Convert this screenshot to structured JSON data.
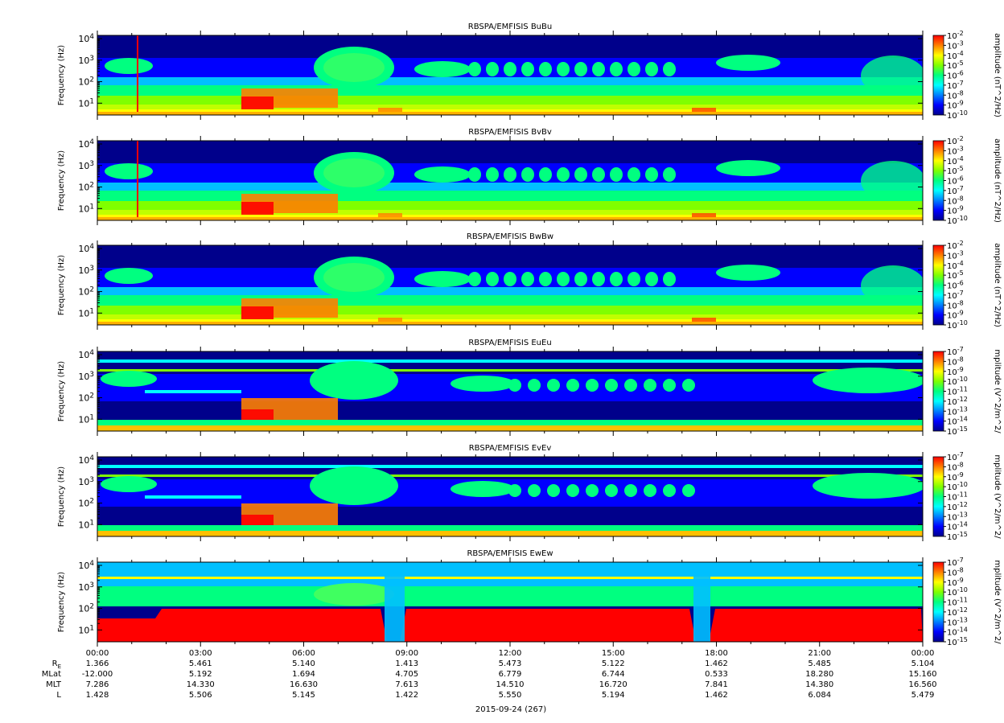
{
  "figure": {
    "date_label": "2015-09-24 (267)"
  },
  "colors": {
    "colormap": [
      "#00008b",
      "#0000ff",
      "#0080ff",
      "#00ffff",
      "#00ff80",
      "#80ff00",
      "#ffff00",
      "#ff8000",
      "#ff0000"
    ],
    "background": "#ffffff"
  },
  "chart_data": [
    {
      "type": "heatmap",
      "title": "RBSPA/EMFISIS  BuBu",
      "ylabel": "Frequency (Hz)",
      "y_scale": "log",
      "y_ticks": [
        "10^1",
        "10^2",
        "10^3",
        "10^4"
      ],
      "colorbar_label": "amplitude (nT^2/Hz)",
      "colorbar_ticks": [
        "10^-2",
        "10^-3",
        "10^-4",
        "10^-5",
        "10^-6",
        "10^-7",
        "10^-8",
        "10^-9",
        "10^-10"
      ],
      "colorbar_range": [
        -10,
        -2
      ]
    },
    {
      "type": "heatmap",
      "title": "RBSPA/EMFISIS  BvBv",
      "ylabel": "Frequency (Hz)",
      "y_scale": "log",
      "y_ticks": [
        "10^1",
        "10^2",
        "10^3",
        "10^4"
      ],
      "colorbar_label": "amplitude (nT^2/Hz)",
      "colorbar_ticks": [
        "10^-2",
        "10^-3",
        "10^-4",
        "10^-5",
        "10^-6",
        "10^-7",
        "10^-8",
        "10^-9",
        "10^-10"
      ],
      "colorbar_range": [
        -10,
        -2
      ]
    },
    {
      "type": "heatmap",
      "title": "RBSPA/EMFISIS  BwBw",
      "ylabel": "Frequency (Hz)",
      "y_scale": "log",
      "y_ticks": [
        "10^1",
        "10^2",
        "10^3",
        "10^4"
      ],
      "colorbar_label": "amplitude (nT^2/Hz)",
      "colorbar_ticks": [
        "10^-2",
        "10^-3",
        "10^-4",
        "10^-5",
        "10^-6",
        "10^-7",
        "10^-8",
        "10^-9",
        "10^-10"
      ],
      "colorbar_range": [
        -10,
        -2
      ]
    },
    {
      "type": "heatmap",
      "title": "RBSPA/EMFISIS  EuEu",
      "ylabel": "Frequency (Hz)",
      "y_scale": "log",
      "y_ticks": [
        "10^1",
        "10^2",
        "10^3",
        "10^4"
      ],
      "colorbar_label": "mplitude (V^2/m^2/",
      "colorbar_ticks": [
        "10^-7",
        "10^-8",
        "10^-9",
        "10^-10",
        "10^-11",
        "10^-12",
        "10^-13",
        "10^-14",
        "10^-15"
      ],
      "colorbar_range": [
        -15,
        -7
      ]
    },
    {
      "type": "heatmap",
      "title": "RBSPA/EMFISIS  EvEv",
      "ylabel": "Frequency (Hz)",
      "y_scale": "log",
      "y_ticks": [
        "10^1",
        "10^2",
        "10^3",
        "10^4"
      ],
      "colorbar_label": "mplitude (V^2/m^2/",
      "colorbar_ticks": [
        "10^-7",
        "10^-8",
        "10^-9",
        "10^-10",
        "10^-11",
        "10^-12",
        "10^-13",
        "10^-14",
        "10^-15"
      ],
      "colorbar_range": [
        -15,
        -7
      ]
    },
    {
      "type": "heatmap",
      "title": "RBSPA/EMFISIS  EwEw",
      "ylabel": "Frequency (Hz)",
      "y_scale": "log",
      "y_ticks": [
        "10^1",
        "10^2",
        "10^3",
        "10^4"
      ],
      "colorbar_label": "mplitude (V^2/m^2/",
      "colorbar_ticks": [
        "10^-7",
        "10^-8",
        "10^-9",
        "10^-10",
        "10^-11",
        "10^-12",
        "10^-13",
        "10^-14",
        "10^-15"
      ],
      "colorbar_range": [
        -15,
        -7
      ]
    }
  ],
  "x_axis": {
    "ticks": [
      "00:00",
      "03:00",
      "06:00",
      "09:00",
      "12:00",
      "15:00",
      "18:00",
      "21:00",
      "00:00"
    ],
    "ephemeris": [
      {
        "label": "R_E",
        "values": [
          "1.366",
          "5.461",
          "5.140",
          "1.413",
          "5.473",
          "5.122",
          "1.462",
          "5.485",
          "5.104"
        ]
      },
      {
        "label": "MLat",
        "values": [
          "-12.000",
          "5.192",
          "1.694",
          "4.705",
          "6.779",
          "6.744",
          "0.533",
          "18.280",
          "15.160"
        ]
      },
      {
        "label": "MLT",
        "values": [
          "7.286",
          "14.330",
          "16.630",
          "7.613",
          "14.510",
          "16.720",
          "7.841",
          "14.380",
          "16.560"
        ]
      },
      {
        "label": "L",
        "values": [
          "1.428",
          "5.506",
          "5.145",
          "1.422",
          "5.550",
          "5.194",
          "1.462",
          "6.084",
          "5.479"
        ]
      }
    ]
  }
}
